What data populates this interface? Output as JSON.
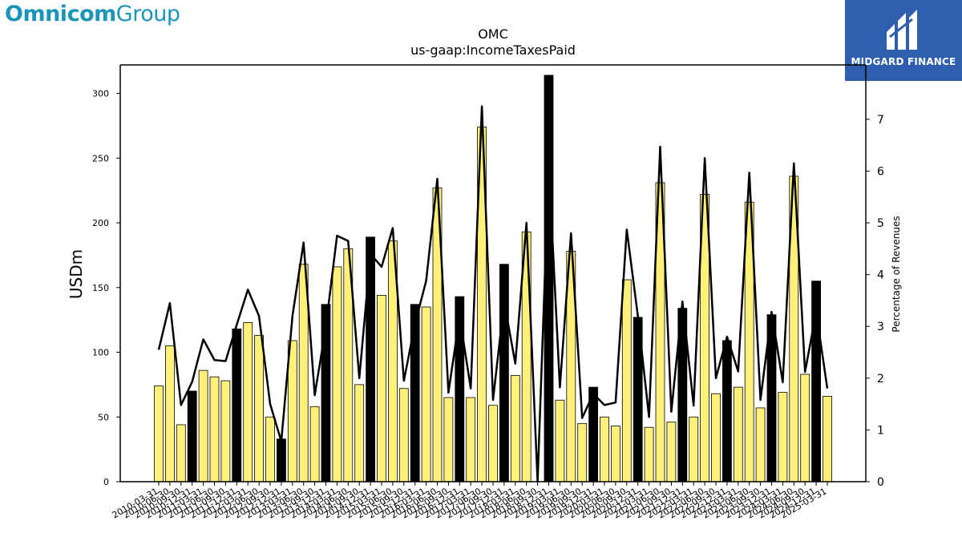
{
  "logos": {
    "omnicom": {
      "part1": "Omnicom",
      "part2": "Group",
      "color": "#1a95b8"
    },
    "midgard": {
      "text": "MIDGARD FINANCE",
      "background": "#2f5eae"
    }
  },
  "chart_data": {
    "type": "bar",
    "title": "OMC",
    "subtitle": "us-gaap:IncomeTaxesPaid",
    "ylabel": "USDm",
    "y2label": "Percentage of Revenues",
    "ylim": [
      0,
      322
    ],
    "y2lim": [
      0,
      8.05
    ],
    "yticks": [
      0,
      50,
      100,
      150,
      200,
      250,
      300
    ],
    "y2ticks": [
      0,
      1,
      2,
      3,
      4,
      5,
      6,
      7
    ],
    "colors": {
      "quarter": "#fff07a",
      "fiscal_year": "#000000",
      "line": "#000000"
    },
    "categories": [
      "2010-03-31",
      "2010-06-30",
      "2010-09-30",
      "2010-12-31",
      "2011-03-31",
      "2011-06-30",
      "2011-09-30",
      "2011-12-31",
      "2012-03-31",
      "2012-06-30",
      "2012-09-30",
      "2012-12-31",
      "2013-03-31",
      "2013-06-30",
      "2013-09-30",
      "2013-12-31",
      "2014-03-31",
      "2014-06-30",
      "2014-09-30",
      "2014-12-31",
      "2015-03-31",
      "2015-06-30",
      "2015-09-30",
      "2015-12-31",
      "2016-03-31",
      "2016-06-30",
      "2016-09-30",
      "2016-12-31",
      "2017-03-31",
      "2017-06-30",
      "2017-09-30",
      "2017-12-31",
      "2018-03-31",
      "2018-06-30",
      "2018-09-30",
      "2018-12-31",
      "2019-03-31",
      "2019-06-30",
      "2019-09-30",
      "2019-12-31",
      "2020-03-31",
      "2020-06-30",
      "2020-09-30",
      "2020-12-31",
      "2021-03-31",
      "2021-06-30",
      "2021-09-30",
      "2021-12-31",
      "2022-03-31",
      "2022-06-30",
      "2022-09-30",
      "2022-12-31",
      "2023-03-31",
      "2023-06-30",
      "2023-09-30",
      "2023-12-31",
      "2024-03-31",
      "2024-06-30",
      "2024-09-30",
      "2024-12-31",
      "2025-03-31"
    ],
    "xtick_labels": [
      "2010-03-31",
      "2010-06-30",
      "2010-09-30",
      "2010-12-31",
      "2011-03-31",
      "2011-06-30",
      "2011-09-30",
      "2011-12-31",
      "2012-03-31",
      "2012-06-30",
      "2012-09-30",
      "2012-12-31",
      "2013-03-31",
      "2013-06-30",
      "2013-09-30",
      "2013-12-31",
      "2014-03-31",
      "2014-06-30",
      "2014-09-30",
      "2014-12-31",
      "2015-03-31",
      "2015-06-30",
      "2015-09-30",
      "2015-12-31",
      "2016-03-31",
      "2016-06-30",
      "2016-09-30",
      "2016-12-31",
      "2017-03-31",
      "2017-06-30",
      "2017-09-30",
      "2017-12-31",
      "2018-03-31",
      "2018-06-30",
      "2018-09-30",
      "2018-12-31",
      "2019-03-31",
      "2019-06-30",
      "2019-09-30",
      "2019-12-31",
      "2020-03-31",
      "2020-06-30",
      "2020-09-30",
      "2020-12-31",
      "2021-03-31",
      "2021-06-30",
      "2021-09-30",
      "2021-12-31",
      "2022-03-31",
      "2022-06-30",
      "2022-09-30",
      "2022-12-31",
      "2023-03-31",
      "2023-06-30",
      "2023-09-30",
      "2023-12-31",
      "2024-03-31",
      "2024-06-30",
      "2024-09-30",
      "2024-12-31",
      "2025-03-31"
    ],
    "bar_values": [
      74,
      105,
      44,
      70,
      86,
      81,
      78,
      118,
      123,
      113,
      50,
      33,
      109,
      168,
      58,
      137,
      166,
      180,
      75,
      189,
      144,
      186,
      72,
      137,
      135,
      227,
      65,
      143,
      65,
      274,
      59,
      168,
      82,
      193,
      0,
      314,
      63,
      178,
      45,
      73,
      50,
      43,
      156,
      127,
      42,
      231,
      46,
      134,
      50,
      222,
      68,
      109,
      73,
      216,
      57,
      129,
      69,
      236,
      83,
      155,
      66
    ],
    "bar_is_fiscal_year": [
      false,
      false,
      false,
      true,
      false,
      false,
      false,
      true,
      false,
      false,
      false,
      true,
      false,
      false,
      false,
      true,
      false,
      false,
      false,
      true,
      false,
      false,
      false,
      true,
      false,
      false,
      false,
      true,
      false,
      false,
      false,
      true,
      false,
      false,
      false,
      true,
      false,
      false,
      false,
      true,
      false,
      false,
      false,
      true,
      false,
      false,
      false,
      true,
      false,
      false,
      false,
      true,
      false,
      false,
      false,
      true,
      false,
      false,
      false,
      true,
      false
    ],
    "line_values": [
      2.55,
      3.45,
      1.48,
      1.93,
      2.75,
      2.35,
      2.33,
      3.03,
      3.71,
      3.2,
      1.5,
      0.78,
      3.2,
      4.62,
      1.67,
      3.0,
      4.75,
      4.65,
      2.0,
      4.4,
      4.15,
      4.9,
      1.95,
      3.05,
      3.88,
      5.85,
      1.72,
      3.2,
      1.8,
      7.25,
      1.58,
      3.48,
      2.28,
      5.0,
      0.0,
      6.12,
      1.82,
      4.8,
      1.23,
      1.7,
      1.48,
      1.53,
      4.87,
      3.2,
      1.25,
      6.47,
      1.35,
      3.48,
      1.47,
      6.25,
      2.0,
      2.8,
      2.13,
      5.97,
      1.58,
      3.28,
      1.92,
      6.15,
      2.12,
      3.28,
      1.8
    ]
  }
}
